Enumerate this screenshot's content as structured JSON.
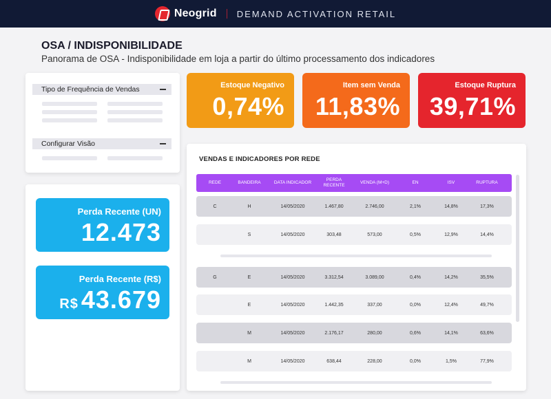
{
  "header": {
    "brand": "Neogrid",
    "app_title": "DEMAND ACTIVATION RETAIL"
  },
  "page": {
    "title": "OSA / INDISPONIBILIDADE",
    "subtitle": "Panorama de OSA - Indisponibilidade em loja a partir do último processamento dos indicadores"
  },
  "filters": {
    "frequency_label": "Tipo de Frequência de Vendas",
    "view_label": "Configurar Visão"
  },
  "kpis": [
    {
      "label": "Estoque Negativo",
      "value": "0,74%",
      "color": "#f29b16"
    },
    {
      "label": "Item sem Venda",
      "value": "11,83%",
      "color": "#f46a1b"
    },
    {
      "label": "Estoque Ruptura",
      "value": "39,71%",
      "color": "#e5252d"
    }
  ],
  "summary": {
    "perda_un_label": "Perda Recente (UN)",
    "perda_un_value": "12.473",
    "perda_rs_label": "Perda Recente (R$)",
    "perda_rs_prefix": "R$",
    "perda_rs_value": "43.679",
    "card_color": "#1bb0ec"
  },
  "table": {
    "title": "VENDAS E INDICADORES POR REDE",
    "header_color": "#a64bf4",
    "columns": [
      "REDE",
      "BANDEIRA",
      "DATA INDICADOR",
      "PERDA RECENTE",
      "VENDA (M+D)",
      "EN",
      "ISV",
      "RUPTURA"
    ],
    "rows": [
      [
        "C",
        "H",
        "14/05/2020",
        "1.467,80",
        "2.746,00",
        "2,1%",
        "14,8%",
        "17,3%"
      ],
      [
        "",
        "S",
        "14/05/2020",
        "303,48",
        "573,00",
        "0,5%",
        "12,9%",
        "14,4%"
      ],
      [
        "G",
        "E",
        "14/05/2020",
        "3.312,54",
        "3.089,00",
        "0,4%",
        "14,2%",
        "35,5%"
      ],
      [
        "",
        "E",
        "14/05/2020",
        "1.442,35",
        "337,00",
        "0,0%",
        "12,4%",
        "49,7%"
      ],
      [
        "",
        "M",
        "14/05/2020",
        "2.176,17",
        "280,00",
        "0,6%",
        "14,1%",
        "63,6%"
      ],
      [
        "",
        "M",
        "14/05/2020",
        "638,44",
        "228,00",
        "0,0%",
        "1,5%",
        "77,9%"
      ]
    ]
  }
}
